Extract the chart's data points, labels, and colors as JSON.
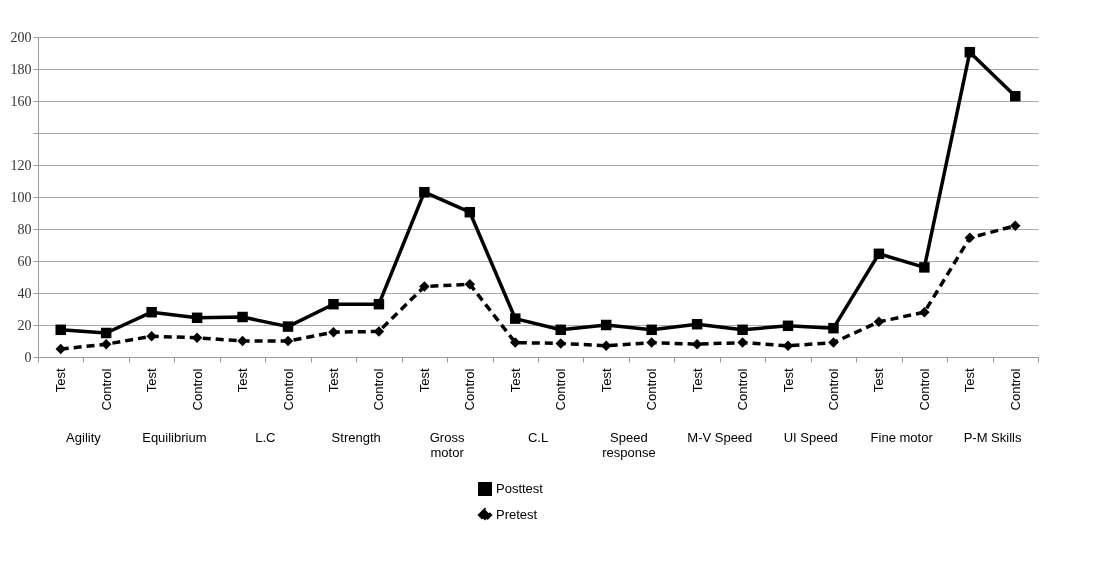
{
  "chart_data": {
    "type": "line",
    "categories": [
      "Test",
      "Control",
      "Test",
      "Control",
      "Test",
      "Control",
      "Test",
      "Control",
      "Test",
      "Control",
      "Test",
      "Control",
      "Test",
      "Control",
      "Test",
      "Control",
      "Test",
      "Control",
      "Test",
      "Control",
      "Test",
      "Control"
    ],
    "annotations": [
      "Agility",
      "Equilibrium",
      "L.C",
      "Strength",
      "Gross\nmotor",
      "C.L",
      "Speed\nresponse",
      "M-V Speed",
      "UI Speed",
      "Fine motor",
      "P-M Skills"
    ],
    "series": [
      {
        "name": "Posttest",
        "color": "#000000",
        "marker": "square",
        "line_style": "solid",
        "values": [
          17,
          15,
          28,
          24.5,
          25,
          19,
          33,
          33,
          103,
          90.5,
          24,
          17,
          20,
          17,
          20.5,
          17,
          19.5,
          18,
          64.5,
          56,
          190.5,
          163
        ]
      },
      {
        "name": "Pretest",
        "color": "#000000",
        "marker": "diamond",
        "line_style": "dashed",
        "values": [
          5,
          8,
          13,
          12,
          10,
          10,
          15.5,
          16,
          44,
          45.5,
          9,
          8.5,
          7,
          9,
          8,
          9,
          7,
          9,
          22,
          28,
          74.5,
          82
        ]
      }
    ],
    "ylim": [
      0,
      200
    ],
    "yticks": [
      0,
      20,
      40,
      60,
      80,
      100,
      120,
      {
        "value": 140,
        "label": null
      },
      160,
      180,
      200
    ],
    "grid": "y",
    "legend": "bottom"
  }
}
